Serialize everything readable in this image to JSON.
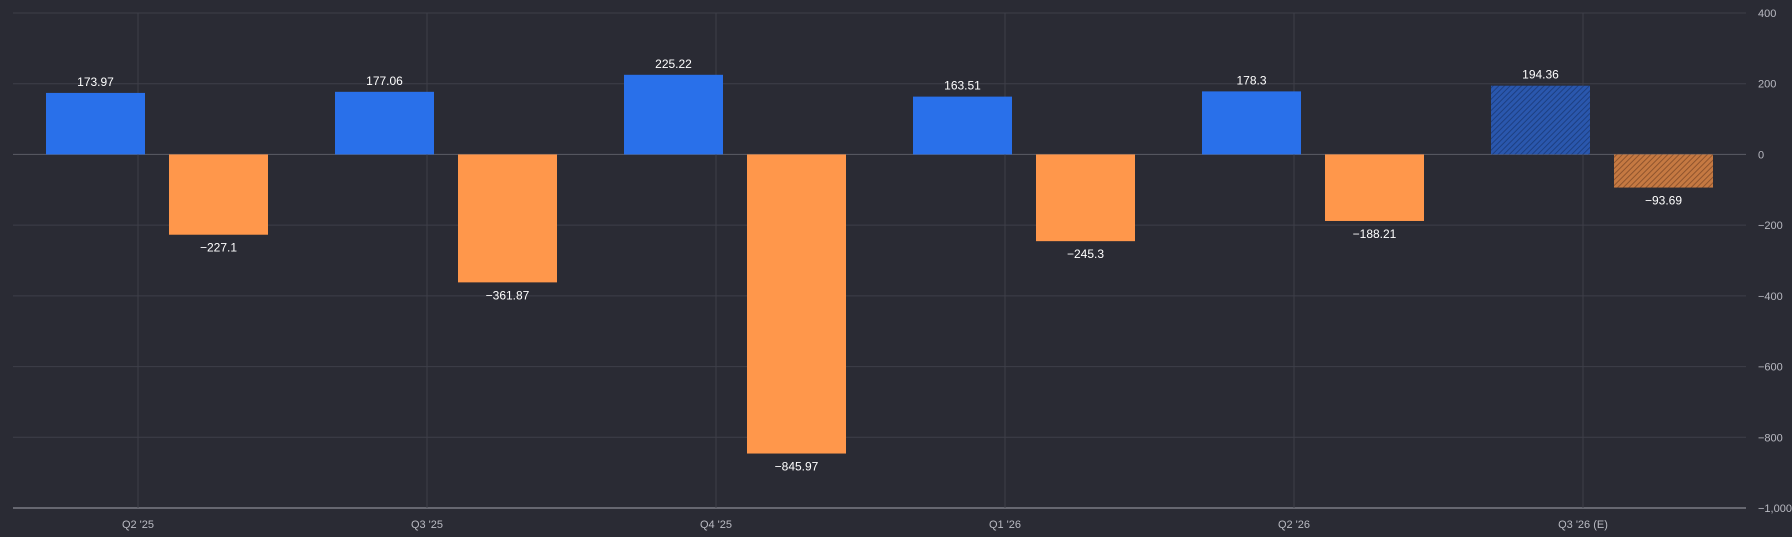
{
  "chart_data": {
    "type": "bar",
    "categories": [
      "Q2 '25",
      "Q3 '25",
      "Q4 '25",
      "Q1 '26",
      "Q2 '26",
      "Q3 '26 (E)"
    ],
    "series": [
      {
        "values": [
          173.97,
          177.06,
          225.22,
          163.51,
          178.3,
          194.36
        ],
        "labels": [
          "173.97",
          "177.06",
          "225.22",
          "163.51",
          "178.3",
          "194.36"
        ],
        "color": "#2970ea"
      },
      {
        "values": [
          -227.1,
          -361.87,
          -845.97,
          -245.3,
          -188.21,
          -93.69
        ],
        "labels": [
          "−227.1",
          "−361.87",
          "−845.97",
          "−245.3",
          "−188.21",
          "−93.69"
        ],
        "color": "#ff974b"
      }
    ],
    "estimated_index": 5,
    "ylim": [
      -1000,
      400
    ],
    "yticks": [
      400,
      200,
      0,
      -200,
      -400,
      -600,
      -800,
      -1000
    ],
    "ytick_labels": [
      "400",
      "200",
      "0",
      "−200",
      "−400",
      "−600",
      "−800",
      "−1,000"
    ],
    "grid": true,
    "title": "",
    "xlabel": "",
    "ylabel": ""
  },
  "colors": {
    "background": "#2a2b34",
    "grid": "#3e3f49",
    "text": "#b9bac2",
    "label": "#ffffff"
  }
}
